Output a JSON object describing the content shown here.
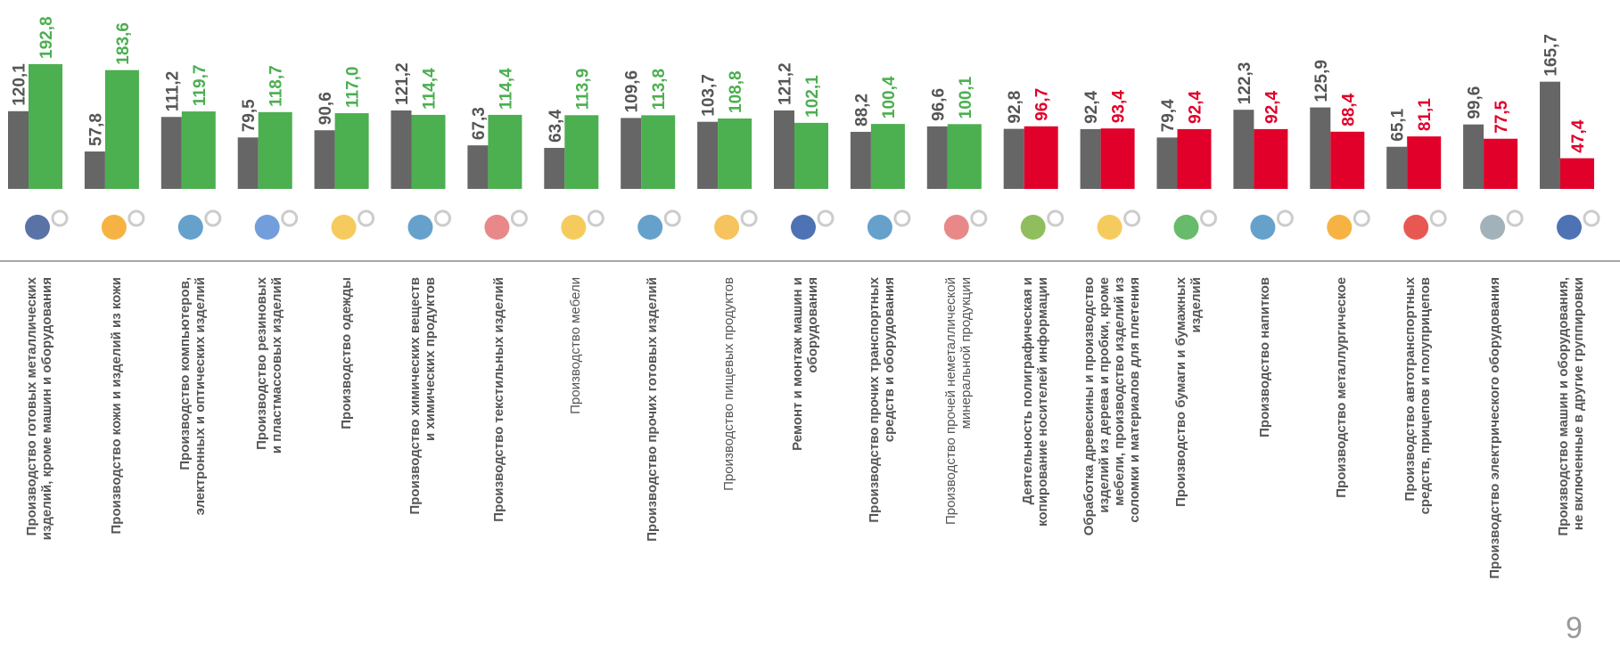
{
  "chart_data": {
    "type": "bar",
    "categories": [
      "Производство готовых металлических\nизделий, кроме машин и оборудования",
      "Производство кожи и изделий из кожи",
      "Производство компьютеров,\nэлектронных и оптических изделий",
      "Производство резиновых\nи пластмассовых изделий",
      "Производство одежды",
      "Производство химических  веществ\nи химических продуктов",
      "Производство текстильных изделий",
      "Производство мебели",
      "Производство прочих  готовых изделий",
      "Производство пищевых продуктов",
      "Ремонт и монтаж машин и\nоборудования",
      "Производство прочих транспортных\nсредств и оборудования",
      "Производство прочей неметаллической\nминеральной продукции",
      "Деятельность полиграфическая и\nкопирование носителей информации",
      "Обработка древесины и производство\nизделий из дерева и пробки, кроме\nмебели, производство изделий из\nсоломки и материалов для плетения",
      "Производство бумаги и бумажных\nизделий",
      "Производство напитков",
      "Производство  металлургическое",
      "Производство автотранспортных\nсредств, прицепов и полуприцепов",
      "Производство электрического оборудования",
      "Производство машин и оборудования,\nне включенные в другие группировки"
    ],
    "category_bold": [
      true,
      true,
      true,
      true,
      true,
      true,
      true,
      false,
      true,
      false,
      true,
      true,
      false,
      true,
      true,
      true,
      true,
      true,
      true,
      true,
      true
    ],
    "series": [
      {
        "color": "#666666",
        "values": [
          120.1,
          57.8,
          111.2,
          79.5,
          90.6,
          121.2,
          67.3,
          63.4,
          109.6,
          103.7,
          121.2,
          88.2,
          96.6,
          92.8,
          92.4,
          79.4,
          122.3,
          125.9,
          65.1,
          99.6,
          165.7
        ],
        "value_labels": [
          "120,1",
          "57,8",
          "111,2",
          "79,5",
          "90,6",
          "121,2",
          "67,3",
          "63,4",
          "109,6",
          "103,7",
          "121,2",
          "88,2",
          "96,6",
          "92,8",
          "92,4",
          "79,4",
          "122,3",
          "125,9",
          "65,1",
          "99,6",
          "165,7"
        ]
      },
      {
        "colors": [
          "#4caf50",
          "#4caf50",
          "#4caf50",
          "#4caf50",
          "#4caf50",
          "#4caf50",
          "#4caf50",
          "#4caf50",
          "#4caf50",
          "#4caf50",
          "#4caf50",
          "#4caf50",
          "#4caf50",
          "#e0002a",
          "#e0002a",
          "#e0002a",
          "#e0002a",
          "#e0002a",
          "#e0002a",
          "#e0002a",
          "#e0002a"
        ],
        "values": [
          192.8,
          183.6,
          119.7,
          118.7,
          117.0,
          114.4,
          114.4,
          113.9,
          113.8,
          108.8,
          102.1,
          100.4,
          100.1,
          96.7,
          93.4,
          92.4,
          92.4,
          88.4,
          81.1,
          77.5,
          47.4
        ],
        "value_labels": [
          "192,8",
          "183,6",
          "119,7",
          "118,7",
          "117,0",
          "114,4",
          "114,4",
          "113,9",
          "113,8",
          "108,8",
          "102,1",
          "100,4",
          "100,1",
          "96,7",
          "93,4",
          "92,4",
          "92,4",
          "88,4",
          "81,1",
          "77,5",
          "47,4"
        ]
      }
    ]
  },
  "page_number": "9"
}
